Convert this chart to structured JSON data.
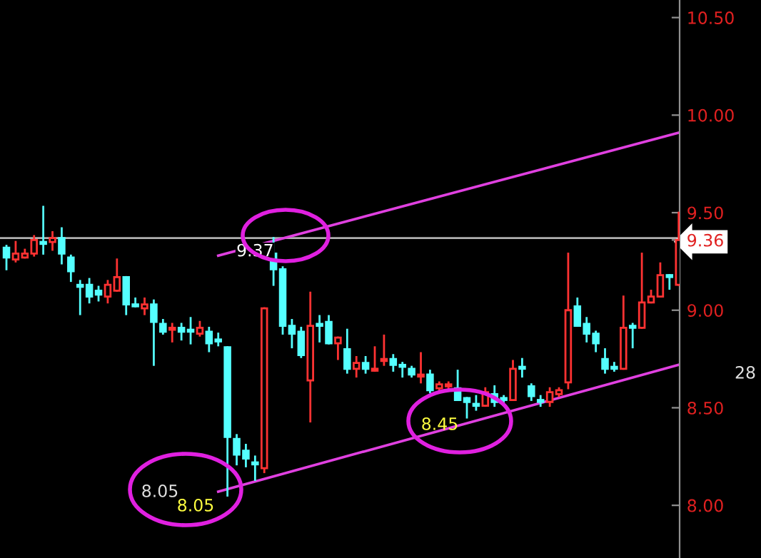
{
  "chart_data": {
    "type": "candlestick",
    "categories": [
      null,
      null,
      null,
      null,
      null,
      null,
      null,
      null,
      null,
      null,
      null,
      null,
      null,
      null,
      null,
      null,
      null,
      null,
      null,
      null,
      null,
      null,
      null,
      null,
      null,
      null,
      null,
      null,
      null,
      null,
      null,
      null,
      null,
      null,
      null,
      null,
      null,
      null,
      null,
      null,
      null,
      null,
      null,
      null,
      null,
      null,
      null,
      null,
      null,
      null,
      null,
      null,
      null,
      null,
      null,
      null,
      null,
      null,
      null,
      null,
      null,
      null,
      null,
      null,
      null,
      null,
      null,
      null,
      null,
      null,
      null,
      null,
      null,
      null
    ],
    "ohlc": [
      [
        9.32,
        9.33,
        9.21,
        9.27
      ],
      [
        9.26,
        9.35,
        9.25,
        9.29
      ],
      [
        9.27,
        9.31,
        9.27,
        9.29
      ],
      [
        9.29,
        9.38,
        9.28,
        9.36
      ],
      [
        9.35,
        9.53,
        9.29,
        9.34
      ],
      [
        9.35,
        9.4,
        9.31,
        9.37
      ],
      [
        9.37,
        9.42,
        9.24,
        9.29
      ],
      [
        9.27,
        9.28,
        9.15,
        9.2
      ],
      [
        9.13,
        9.15,
        8.98,
        9.12
      ],
      [
        9.13,
        9.16,
        9.04,
        9.07
      ],
      [
        9.1,
        9.12,
        9.05,
        9.08
      ],
      [
        9.07,
        9.15,
        9.04,
        9.13
      ],
      [
        9.1,
        9.26,
        9.1,
        9.17
      ],
      [
        9.17,
        9.17,
        8.98,
        9.03
      ],
      [
        9.03,
        9.06,
        9.02,
        9.02
      ],
      [
        9.01,
        9.06,
        8.98,
        9.03
      ],
      [
        9.03,
        9.05,
        8.72,
        8.94
      ],
      [
        8.93,
        8.95,
        8.88,
        8.89
      ],
      [
        8.9,
        8.93,
        8.84,
        8.91
      ],
      [
        8.91,
        8.93,
        8.85,
        8.89
      ],
      [
        8.9,
        8.96,
        8.83,
        8.89
      ],
      [
        8.88,
        8.94,
        8.87,
        8.91
      ],
      [
        8.89,
        8.91,
        8.79,
        8.83
      ],
      [
        8.85,
        8.88,
        8.82,
        8.84
      ],
      [
        8.81,
        8.81,
        8.05,
        8.35
      ],
      [
        8.34,
        8.36,
        8.21,
        8.26
      ],
      [
        8.28,
        8.31,
        8.2,
        8.24
      ],
      [
        8.22,
        8.25,
        8.13,
        8.21
      ],
      [
        8.19,
        9.01,
        8.17,
        9.01
      ],
      [
        9.29,
        9.37,
        9.13,
        9.21
      ],
      [
        9.21,
        9.22,
        8.88,
        8.92
      ],
      [
        8.92,
        8.95,
        8.81,
        8.88
      ],
      [
        8.89,
        8.91,
        8.76,
        8.77
      ],
      [
        8.64,
        9.09,
        8.43,
        8.92
      ],
      [
        8.93,
        8.97,
        8.84,
        8.92
      ],
      [
        8.94,
        8.97,
        8.83,
        8.83
      ],
      [
        8.83,
        8.86,
        8.75,
        8.86
      ],
      [
        8.8,
        8.9,
        8.68,
        8.7
      ],
      [
        8.7,
        8.76,
        8.66,
        8.73
      ],
      [
        8.73,
        8.76,
        8.68,
        8.7
      ],
      [
        8.69,
        8.81,
        8.69,
        8.7
      ],
      [
        8.74,
        8.87,
        8.72,
        8.75
      ],
      [
        8.75,
        8.77,
        8.69,
        8.72
      ],
      [
        8.72,
        8.73,
        8.66,
        8.71
      ],
      [
        8.7,
        8.71,
        8.66,
        8.67
      ],
      [
        8.66,
        8.78,
        8.63,
        8.67
      ],
      [
        8.67,
        8.69,
        8.58,
        8.59
      ],
      [
        8.6,
        8.63,
        8.59,
        8.62
      ],
      [
        8.61,
        8.63,
        8.6,
        8.62
      ],
      [
        8.6,
        8.69,
        8.54,
        8.54
      ],
      [
        8.55,
        8.55,
        8.45,
        8.53
      ],
      [
        8.52,
        8.56,
        8.49,
        8.51
      ],
      [
        8.51,
        8.6,
        8.51,
        8.58
      ],
      [
        8.57,
        8.61,
        8.51,
        8.53
      ],
      [
        8.55,
        8.56,
        8.52,
        8.54
      ],
      [
        8.54,
        8.74,
        8.54,
        8.7
      ],
      [
        8.71,
        8.75,
        8.66,
        8.7
      ],
      [
        8.61,
        8.62,
        8.54,
        8.56
      ],
      [
        8.54,
        8.56,
        8.51,
        8.53
      ],
      [
        8.53,
        8.6,
        8.51,
        8.58
      ],
      [
        8.57,
        8.6,
        8.56,
        8.59
      ],
      [
        8.63,
        9.29,
        8.6,
        9.0
      ],
      [
        9.02,
        9.06,
        8.92,
        8.92
      ],
      [
        8.93,
        8.96,
        8.84,
        8.88
      ],
      [
        8.88,
        8.89,
        8.79,
        8.83
      ],
      [
        8.75,
        8.8,
        8.68,
        8.7
      ],
      [
        8.71,
        8.73,
        8.69,
        8.7
      ],
      [
        8.7,
        9.07,
        8.7,
        8.91
      ],
      [
        8.92,
        8.93,
        8.81,
        8.91
      ],
      [
        8.91,
        9.29,
        8.91,
        9.04
      ],
      [
        9.04,
        9.1,
        9.04,
        9.07
      ],
      [
        9.07,
        9.24,
        9.07,
        9.18
      ],
      [
        9.18,
        9.18,
        9.11,
        9.17
      ],
      [
        9.13,
        9.5,
        9.13,
        9.36
      ]
    ],
    "series": [
      {
        "type": "line",
        "color": "#e040e0",
        "values": [
          null,
          null,
          null,
          null,
          null,
          null,
          null,
          null,
          null,
          null,
          null,
          null,
          null,
          null,
          null,
          null,
          null,
          null,
          null,
          null,
          null,
          null,
          null,
          8.07,
          null,
          null,
          null,
          null,
          null,
          null,
          null,
          null,
          null,
          null,
          null,
          null,
          null,
          null,
          null,
          null,
          null,
          null,
          null,
          null,
          null,
          null,
          null,
          null,
          null,
          null,
          null,
          null,
          null,
          null,
          null,
          null,
          null,
          null,
          null,
          null,
          null,
          null,
          null,
          null,
          null,
          null,
          null,
          null,
          null,
          null,
          null,
          null,
          null,
          8.72
        ]
      },
      {
        "type": "line",
        "color": "#e040e0",
        "values": [
          null,
          null,
          null,
          null,
          null,
          null,
          null,
          null,
          null,
          null,
          null,
          null,
          null,
          null,
          null,
          null,
          null,
          null,
          null,
          null,
          null,
          null,
          null,
          9.28,
          null,
          null,
          null,
          null,
          null,
          null,
          null,
          null,
          null,
          null,
          null,
          null,
          null,
          null,
          null,
          null,
          null,
          null,
          null,
          null,
          null,
          null,
          null,
          null,
          null,
          null,
          null,
          null,
          null,
          null,
          null,
          null,
          null,
          null,
          null,
          null,
          null,
          null,
          null,
          null,
          null,
          null,
          null,
          null,
          null,
          null,
          null,
          null,
          null,
          9.91
        ]
      }
    ],
    "ylim": [
      7.73,
      10.59
    ],
    "yticks": [
      {
        "value": 8,
        "label": "8.00"
      },
      {
        "value": 8.5,
        "label": "8.50"
      },
      {
        "value": 9,
        "label": "9.00"
      },
      {
        "value": 9.36,
        "label": "9.36"
      },
      {
        "value": 9.5,
        "label": "9.50"
      },
      {
        "value": 10,
        "label": "10.00"
      },
      {
        "value": 10.5,
        "label": "10.50"
      }
    ],
    "ref_lines": [
      {
        "axis": "y",
        "value": 9.37,
        "color": "#b0b0b0"
      }
    ],
    "annotations": [
      "8.05",
      "8.05",
      {
        "text": "9.37",
        "y": 9.37
      },
      "8.45",
      "28"
    ],
    "grid": false
  }
}
